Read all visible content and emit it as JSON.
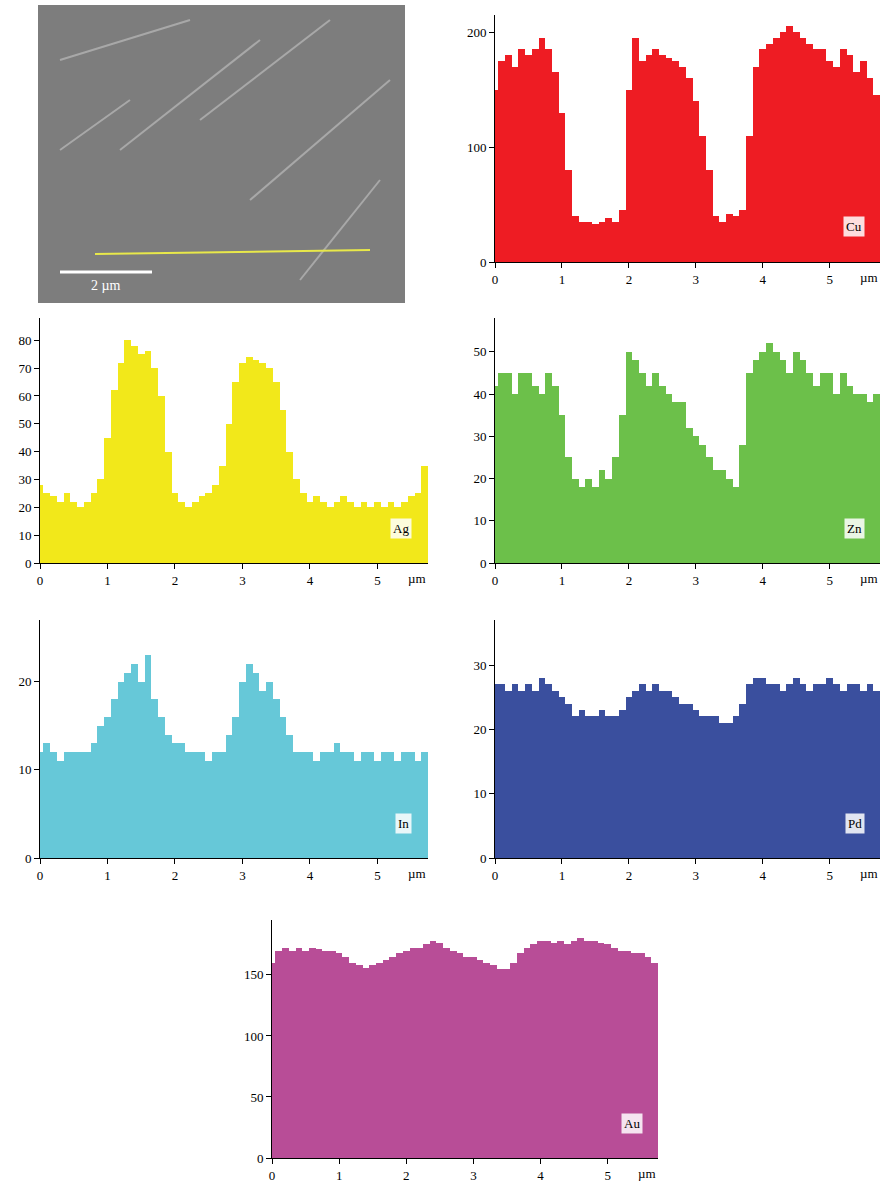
{
  "image": {
    "scale_bar": "2 µm"
  },
  "chart_data": [
    {
      "type": "bar",
      "title": "Cu",
      "xlabel": "µm",
      "color": "#ee1c23",
      "x": [
        0,
        0.1,
        0.2,
        0.3,
        0.4,
        0.5,
        0.6,
        0.7,
        0.8,
        0.9,
        1.0,
        1.1,
        1.2,
        1.3,
        1.4,
        1.5,
        1.6,
        1.7,
        1.8,
        1.9,
        2.0,
        2.1,
        2.2,
        2.3,
        2.4,
        2.5,
        2.6,
        2.7,
        2.8,
        2.9,
        3.0,
        3.1,
        3.2,
        3.3,
        3.4,
        3.5,
        3.6,
        3.7,
        3.8,
        3.9,
        4.0,
        4.1,
        4.2,
        4.3,
        4.4,
        4.5,
        4.6,
        4.7,
        4.8,
        4.9,
        5.0,
        5.1,
        5.2,
        5.3,
        5.4,
        5.5,
        5.6,
        5.7
      ],
      "values": [
        150,
        175,
        180,
        170,
        185,
        180,
        185,
        195,
        185,
        165,
        130,
        80,
        40,
        35,
        35,
        33,
        35,
        38,
        35,
        45,
        150,
        195,
        175,
        180,
        185,
        180,
        178,
        175,
        170,
        160,
        140,
        110,
        80,
        40,
        35,
        42,
        40,
        45,
        110,
        170,
        185,
        190,
        195,
        200,
        205,
        200,
        195,
        190,
        185,
        185,
        175,
        170,
        185,
        180,
        165,
        175,
        160,
        145
      ],
      "xlim": [
        0,
        5.75
      ],
      "ylim": [
        0,
        215
      ],
      "xticks": [
        0,
        1,
        2,
        3,
        4,
        5
      ],
      "yticks": [
        0,
        100,
        200
      ],
      "grid": false
    },
    {
      "type": "bar",
      "title": "Ag",
      "xlabel": "µm",
      "color": "#f2e81a",
      "x": [
        0,
        0.1,
        0.2,
        0.3,
        0.4,
        0.5,
        0.6,
        0.7,
        0.8,
        0.9,
        1.0,
        1.1,
        1.2,
        1.3,
        1.4,
        1.5,
        1.6,
        1.7,
        1.8,
        1.9,
        2.0,
        2.1,
        2.2,
        2.3,
        2.4,
        2.5,
        2.6,
        2.7,
        2.8,
        2.9,
        3.0,
        3.1,
        3.2,
        3.3,
        3.4,
        3.5,
        3.6,
        3.7,
        3.8,
        3.9,
        4.0,
        4.1,
        4.2,
        4.3,
        4.4,
        4.5,
        4.6,
        4.7,
        4.8,
        4.9,
        5.0,
        5.1,
        5.2,
        5.3,
        5.4,
        5.5,
        5.6,
        5.7
      ],
      "values": [
        28,
        25,
        24,
        22,
        25,
        22,
        20,
        22,
        25,
        30,
        45,
        62,
        72,
        80,
        78,
        75,
        76,
        70,
        60,
        40,
        25,
        22,
        20,
        22,
        24,
        25,
        28,
        35,
        50,
        65,
        72,
        74,
        73,
        72,
        70,
        65,
        55,
        40,
        30,
        25,
        22,
        24,
        22,
        20,
        22,
        24,
        22,
        20,
        22,
        20,
        22,
        20,
        22,
        20,
        22,
        24,
        25,
        35
      ],
      "xlim": [
        0,
        5.75
      ],
      "ylim": [
        0,
        88
      ],
      "xticks": [
        0,
        1,
        2,
        3,
        4,
        5
      ],
      "yticks": [
        0,
        10,
        20,
        30,
        40,
        50,
        60,
        70,
        80
      ],
      "grid": false
    },
    {
      "type": "bar",
      "title": "Zn",
      "xlabel": "µm",
      "color": "#6cc04a",
      "x": [
        0,
        0.1,
        0.2,
        0.3,
        0.4,
        0.5,
        0.6,
        0.7,
        0.8,
        0.9,
        1.0,
        1.1,
        1.2,
        1.3,
        1.4,
        1.5,
        1.6,
        1.7,
        1.8,
        1.9,
        2.0,
        2.1,
        2.2,
        2.3,
        2.4,
        2.5,
        2.6,
        2.7,
        2.8,
        2.9,
        3.0,
        3.1,
        3.2,
        3.3,
        3.4,
        3.5,
        3.6,
        3.7,
        3.8,
        3.9,
        4.0,
        4.1,
        4.2,
        4.3,
        4.4,
        4.5,
        4.6,
        4.7,
        4.8,
        4.9,
        5.0,
        5.1,
        5.2,
        5.3,
        5.4,
        5.5,
        5.6,
        5.7
      ],
      "values": [
        42,
        45,
        45,
        40,
        45,
        45,
        42,
        40,
        45,
        42,
        35,
        25,
        20,
        18,
        20,
        18,
        22,
        20,
        25,
        35,
        50,
        48,
        45,
        42,
        45,
        42,
        40,
        38,
        38,
        32,
        30,
        28,
        25,
        22,
        22,
        20,
        18,
        28,
        45,
        48,
        50,
        52,
        50,
        48,
        45,
        50,
        48,
        45,
        42,
        45,
        45,
        40,
        45,
        42,
        40,
        40,
        38,
        40
      ],
      "xlim": [
        0,
        5.75
      ],
      "ylim": [
        0,
        58
      ],
      "xticks": [
        0,
        1,
        2,
        3,
        4,
        5
      ],
      "yticks": [
        0,
        10,
        20,
        30,
        40,
        50
      ],
      "grid": false
    },
    {
      "type": "bar",
      "title": "In",
      "xlabel": "µm",
      "color": "#66c8d8",
      "x": [
        0,
        0.1,
        0.2,
        0.3,
        0.4,
        0.5,
        0.6,
        0.7,
        0.8,
        0.9,
        1.0,
        1.1,
        1.2,
        1.3,
        1.4,
        1.5,
        1.6,
        1.7,
        1.8,
        1.9,
        2.0,
        2.1,
        2.2,
        2.3,
        2.4,
        2.5,
        2.6,
        2.7,
        2.8,
        2.9,
        3.0,
        3.1,
        3.2,
        3.3,
        3.4,
        3.5,
        3.6,
        3.7,
        3.8,
        3.9,
        4.0,
        4.1,
        4.2,
        4.3,
        4.4,
        4.5,
        4.6,
        4.7,
        4.8,
        4.9,
        5.0,
        5.1,
        5.2,
        5.3,
        5.4,
        5.5,
        5.6,
        5.7
      ],
      "values": [
        12,
        13,
        12,
        11,
        12,
        12,
        12,
        12,
        13,
        15,
        16,
        18,
        20,
        21,
        22,
        20,
        23,
        18,
        16,
        14,
        13,
        13,
        12,
        12,
        12,
        11,
        12,
        12,
        14,
        16,
        20,
        22,
        21,
        19,
        20,
        18,
        16,
        14,
        12,
        12,
        12,
        11,
        12,
        12,
        13,
        12,
        12,
        11,
        12,
        12,
        11,
        12,
        12,
        11,
        12,
        12,
        11,
        12
      ],
      "xlim": [
        0,
        5.75
      ],
      "ylim": [
        0,
        27
      ],
      "xticks": [
        0,
        1,
        2,
        3,
        4,
        5
      ],
      "yticks": [
        0,
        10,
        20
      ],
      "grid": false
    },
    {
      "type": "bar",
      "title": "Pd",
      "xlabel": "µm",
      "color": "#3a4f9e",
      "x": [
        0,
        0.1,
        0.2,
        0.3,
        0.4,
        0.5,
        0.6,
        0.7,
        0.8,
        0.9,
        1.0,
        1.1,
        1.2,
        1.3,
        1.4,
        1.5,
        1.6,
        1.7,
        1.8,
        1.9,
        2.0,
        2.1,
        2.2,
        2.3,
        2.4,
        2.5,
        2.6,
        2.7,
        2.8,
        2.9,
        3.0,
        3.1,
        3.2,
        3.3,
        3.4,
        3.5,
        3.6,
        3.7,
        3.8,
        3.9,
        4.0,
        4.1,
        4.2,
        4.3,
        4.4,
        4.5,
        4.6,
        4.7,
        4.8,
        4.9,
        5.0,
        5.1,
        5.2,
        5.3,
        5.4,
        5.5,
        5.6,
        5.7
      ],
      "values": [
        27,
        27,
        26,
        27,
        26,
        27,
        26,
        28,
        27,
        26,
        25,
        24,
        22,
        23,
        22,
        22,
        23,
        22,
        22,
        23,
        25,
        26,
        27,
        26,
        27,
        26,
        26,
        25,
        24,
        24,
        23,
        22,
        22,
        22,
        21,
        21,
        22,
        24,
        27,
        28,
        28,
        27,
        27,
        26,
        27,
        28,
        27,
        26,
        27,
        27,
        28,
        27,
        26,
        27,
        27,
        26,
        27,
        26
      ],
      "xlim": [
        0,
        5.75
      ],
      "ylim": [
        0,
        37
      ],
      "xticks": [
        0,
        1,
        2,
        3,
        4,
        5
      ],
      "yticks": [
        0,
        10,
        20,
        30
      ],
      "grid": false
    },
    {
      "type": "bar",
      "title": "Au",
      "xlabel": "µm",
      "color": "#b84d97",
      "x": [
        0,
        0.1,
        0.2,
        0.3,
        0.4,
        0.5,
        0.6,
        0.7,
        0.8,
        0.9,
        1.0,
        1.1,
        1.2,
        1.3,
        1.4,
        1.5,
        1.6,
        1.7,
        1.8,
        1.9,
        2.0,
        2.1,
        2.2,
        2.3,
        2.4,
        2.5,
        2.6,
        2.7,
        2.8,
        2.9,
        3.0,
        3.1,
        3.2,
        3.3,
        3.4,
        3.5,
        3.6,
        3.7,
        3.8,
        3.9,
        4.0,
        4.1,
        4.2,
        4.3,
        4.4,
        4.5,
        4.6,
        4.7,
        4.8,
        4.9,
        5.0,
        5.1,
        5.2,
        5.3,
        5.4,
        5.5,
        5.6,
        5.7
      ],
      "values": [
        160,
        170,
        172,
        170,
        172,
        170,
        172,
        171,
        170,
        170,
        168,
        165,
        160,
        158,
        156,
        158,
        160,
        162,
        165,
        168,
        170,
        172,
        172,
        175,
        178,
        176,
        172,
        170,
        168,
        165,
        165,
        162,
        160,
        158,
        155,
        155,
        160,
        168,
        172,
        175,
        178,
        178,
        176,
        178,
        175,
        178,
        180,
        178,
        178,
        176,
        175,
        172,
        170,
        170,
        168,
        168,
        165,
        160
      ],
      "xlim": [
        0,
        5.75
      ],
      "ylim": [
        0,
        195
      ],
      "xticks": [
        0,
        1,
        2,
        3,
        4,
        5
      ],
      "yticks": [
        0,
        50,
        100,
        150
      ],
      "grid": false
    }
  ]
}
